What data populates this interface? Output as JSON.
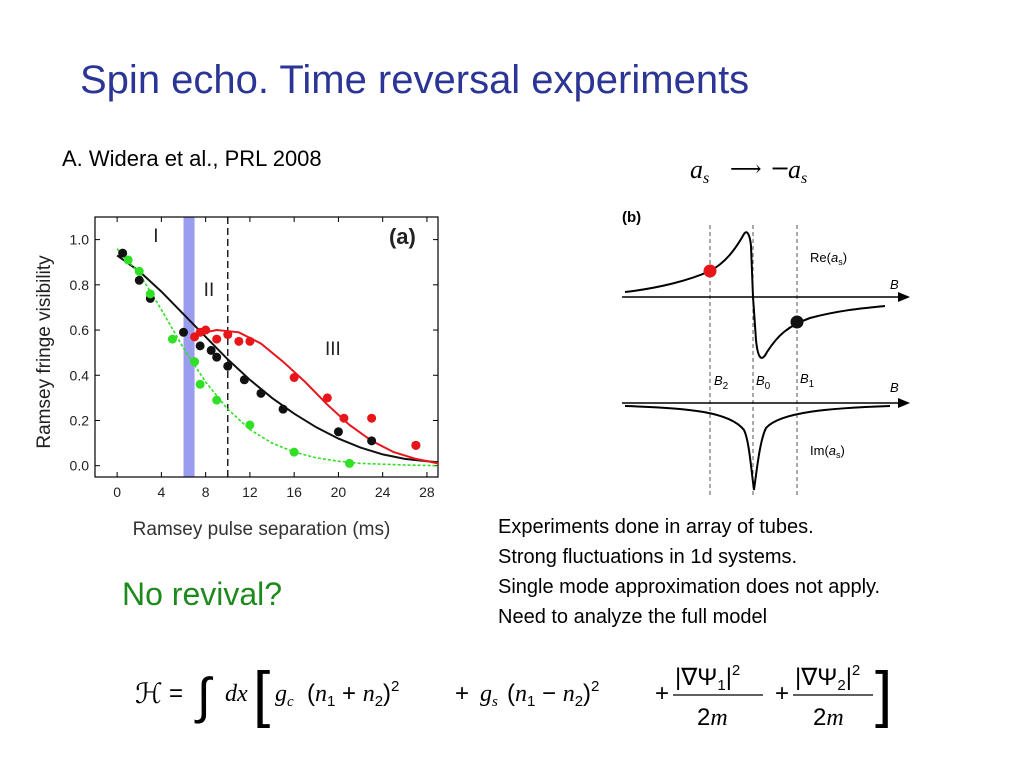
{
  "slide": {
    "title": "Spin echo. Time reversal experiments",
    "reference": "A. Widera et al., PRL 2008",
    "no_revival": "No revival?",
    "notes": [
      "Experiments done in array of tubes.",
      "Strong fluctuations in 1d systems.",
      "Single mode approximation does not apply.",
      "Need to analyze the full model"
    ],
    "mapping_formula": "a_s → −a_s",
    "hamiltonian_formula": "H = ∫ dx [ g_c (n1 + n2)^2 + g_s (n1 − n2)^2 + |∇Ψ1|^2/2m + |∇Ψ2|^2/2m ]"
  },
  "chart_data": [
    {
      "type": "scatter",
      "panel_label": "(a)",
      "xlabel": "Ramsey pulse separation (ms)",
      "ylabel": "Ramsey fringe visibility",
      "xlim": [
        -2,
        29
      ],
      "ylim": [
        -0.05,
        1.1
      ],
      "xticks": [
        0,
        4,
        8,
        12,
        16,
        20,
        24,
        28
      ],
      "yticks": [
        "0.0",
        "0.2",
        "0.4",
        "0.6",
        "0.8",
        "1.0"
      ],
      "region_labels": [
        "I",
        "II",
        "III"
      ],
      "shaded_band": [
        6,
        7
      ],
      "dashed_line_x": 10,
      "colors": {
        "black": "#111111",
        "red": "#e8151b",
        "green": "#2fe024",
        "band": "#9a9cf0"
      },
      "series": [
        {
          "color": "black",
          "points": [
            [
              0.5,
              0.94
            ],
            [
              2,
              0.82
            ],
            [
              3,
              0.74
            ],
            [
              6,
              0.59
            ],
            [
              7.5,
              0.53
            ],
            [
              8.5,
              0.51
            ],
            [
              9,
              0.48
            ],
            [
              10,
              0.44
            ],
            [
              11.5,
              0.38
            ],
            [
              13,
              0.32
            ],
            [
              15,
              0.25
            ],
            [
              20,
              0.15
            ],
            [
              23,
              0.11
            ],
            [
              27,
              0.09
            ]
          ],
          "fit": [
            [
              0,
              0.93
            ],
            [
              2,
              0.86
            ],
            [
              4,
              0.77
            ],
            [
              6,
              0.67
            ],
            [
              8,
              0.57
            ],
            [
              10,
              0.47
            ],
            [
              12,
              0.38
            ],
            [
              14,
              0.3
            ],
            [
              16,
              0.23
            ],
            [
              18,
              0.17
            ],
            [
              20,
              0.12
            ],
            [
              22,
              0.08
            ],
            [
              24,
              0.05
            ],
            [
              26,
              0.03
            ],
            [
              28,
              0.02
            ],
            [
              29,
              0.015
            ]
          ]
        },
        {
          "color": "red",
          "points": [
            [
              7,
              0.57
            ],
            [
              7.5,
              0.59
            ],
            [
              8,
              0.6
            ],
            [
              9,
              0.56
            ],
            [
              10,
              0.58
            ],
            [
              11,
              0.55
            ],
            [
              12,
              0.55
            ],
            [
              16,
              0.39
            ],
            [
              19,
              0.3
            ],
            [
              20.5,
              0.21
            ],
            [
              23,
              0.21
            ],
            [
              27,
              0.09
            ]
          ],
          "fit": [
            [
              7,
              0.58
            ],
            [
              9,
              0.6
            ],
            [
              11,
              0.59
            ],
            [
              13,
              0.54
            ],
            [
              15,
              0.46
            ],
            [
              17,
              0.37
            ],
            [
              19,
              0.27
            ],
            [
              21,
              0.18
            ],
            [
              23,
              0.11
            ],
            [
              25,
              0.06
            ],
            [
              27,
              0.03
            ],
            [
              29,
              0.01
            ]
          ]
        },
        {
          "color": "green",
          "points": [
            [
              1,
              0.91
            ],
            [
              2,
              0.86
            ],
            [
              3,
              0.76
            ],
            [
              5,
              0.56
            ],
            [
              7,
              0.46
            ],
            [
              7.5,
              0.36
            ],
            [
              9,
              0.29
            ],
            [
              12,
              0.18
            ],
            [
              16,
              0.06
            ],
            [
              21,
              0.01
            ]
          ],
          "fit": [
            [
              0,
              0.96
            ],
            [
              2,
              0.85
            ],
            [
              4,
              0.69
            ],
            [
              6,
              0.52
            ],
            [
              8,
              0.37
            ],
            [
              10,
              0.25
            ],
            [
              12,
              0.16
            ],
            [
              14,
              0.1
            ],
            [
              16,
              0.06
            ],
            [
              18,
              0.035
            ],
            [
              20,
              0.02
            ],
            [
              22,
              0.01
            ],
            [
              26,
              0.003
            ],
            [
              29,
              0.0
            ]
          ]
        }
      ]
    },
    {
      "type": "line",
      "panel_label": "(b)",
      "x_axis_label": "B",
      "top_curve_label": "Re(a_s)",
      "bottom_curve_label": "Im(a_s)",
      "vline_labels": [
        "B2",
        "B0",
        "B1"
      ],
      "markers": [
        {
          "on": "B2",
          "color": "#e8151b"
        },
        {
          "on": "B1",
          "color": "#111111"
        }
      ]
    }
  ]
}
